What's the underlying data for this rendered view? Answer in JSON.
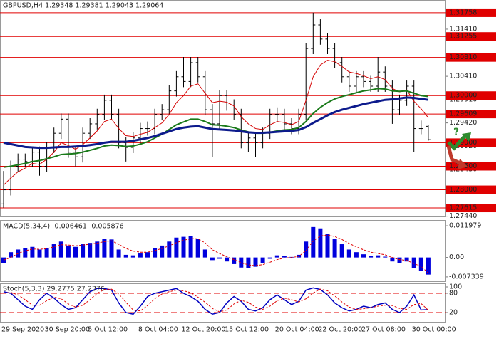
{
  "chart_data": [
    {
      "type": "ohlc",
      "title": "GBPUSD,H4  1.29348 1.29381 1.29043 1.29064",
      "annotation": "?",
      "categories": [
        "29 Sep 2020",
        null,
        null,
        null,
        null,
        null,
        "30 Sep 20:00",
        null,
        null,
        null,
        null,
        null,
        "5 Oct 12:00",
        null,
        null,
        null,
        null,
        null,
        null,
        "8 Oct 04:00",
        null,
        null,
        null,
        null,
        null,
        "12 Oct 20:00",
        null,
        null,
        null,
        null,
        null,
        "15 Oct 12:00",
        null,
        null,
        null,
        null,
        null,
        null,
        "20 Oct 04:00",
        null,
        null,
        null,
        null,
        null,
        "22 Oct 20:00",
        null,
        null,
        null,
        null,
        null,
        "27 Oct 08:00",
        null,
        null,
        null,
        null,
        null,
        null,
        "30 Oct 00:00",
        null,
        null
      ],
      "open": [
        1.277,
        1.28,
        1.285,
        1.2865,
        1.286,
        1.288,
        1.285,
        1.289,
        1.292,
        1.295,
        1.288,
        1.287,
        1.292,
        1.294,
        1.296,
        1.299,
        1.296,
        1.29,
        1.289,
        1.291,
        1.293,
        1.293,
        1.296,
        1.297,
        1.301,
        1.304,
        1.303,
        1.307,
        1.304,
        1.297,
        1.294,
        1.3,
        1.298,
        1.296,
        1.29,
        1.291,
        1.29,
        1.292,
        1.296,
        1.296,
        1.294,
        1.293,
        1.296,
        1.31,
        1.315,
        1.312,
        1.31,
        1.307,
        1.304,
        1.302,
        1.304,
        1.303,
        1.302,
        1.305,
        1.302,
        1.297,
        1.299,
        1.302,
        1.293,
        1.29348
      ],
      "high": [
        1.284,
        1.2862,
        1.2877,
        1.2877,
        1.2892,
        1.2892,
        1.2902,
        1.2932,
        1.2962,
        1.2962,
        1.2892,
        1.2932,
        1.2952,
        1.2972,
        1.3002,
        1.3002,
        1.2972,
        1.2912,
        1.2922,
        1.2942,
        1.2945,
        1.2972,
        1.2982,
        1.3022,
        1.3052,
        1.3082,
        1.3082,
        1.3082,
        1.3052,
        1.2982,
        1.3012,
        1.3012,
        1.2992,
        1.2972,
        1.2922,
        1.2922,
        1.2932,
        1.2972,
        1.2975,
        1.2972,
        1.2952,
        1.2972,
        1.3112,
        1.3176,
        1.3162,
        1.3132,
        1.3112,
        1.3082,
        1.3052,
        1.3052,
        1.3052,
        1.3042,
        1.3082,
        1.3062,
        1.3032,
        1.3002,
        1.3032,
        1.3032,
        1.2947,
        1.29381
      ],
      "low": [
        1.2762,
        1.2788,
        1.2838,
        1.2848,
        1.2848,
        1.283,
        1.2838,
        1.2878,
        1.2908,
        1.2868,
        1.285,
        1.2858,
        1.2908,
        1.2928,
        1.2948,
        1.2948,
        1.2888,
        1.286,
        1.2878,
        1.2898,
        1.2915,
        1.2918,
        1.2948,
        1.2958,
        1.2998,
        1.3018,
        1.3018,
        1.3028,
        1.2958,
        1.287,
        1.2928,
        1.2968,
        1.2948,
        1.2888,
        1.288,
        1.287,
        1.2888,
        1.2908,
        1.2945,
        1.2928,
        1.2918,
        1.2918,
        1.2948,
        1.3088,
        1.3108,
        1.3088,
        1.3058,
        1.3028,
        1.3008,
        1.3008,
        1.3018,
        1.3008,
        1.3008,
        1.3008,
        1.294,
        1.2958,
        1.2978,
        1.288,
        1.2918,
        1.29043
      ],
      "close": [
        1.28,
        1.285,
        1.2865,
        1.286,
        1.288,
        1.285,
        1.289,
        1.292,
        1.295,
        1.288,
        1.287,
        1.292,
        1.294,
        1.296,
        1.299,
        1.296,
        1.29,
        1.289,
        1.291,
        1.293,
        1.293,
        1.296,
        1.297,
        1.301,
        1.304,
        1.303,
        1.307,
        1.304,
        1.297,
        1.294,
        1.3,
        1.298,
        1.296,
        1.29,
        1.291,
        1.29,
        1.292,
        1.296,
        1.296,
        1.294,
        1.293,
        1.296,
        1.31,
        1.315,
        1.312,
        1.31,
        1.307,
        1.304,
        1.302,
        1.304,
        1.303,
        1.302,
        1.305,
        1.302,
        1.297,
        1.299,
        1.302,
        1.293,
        1.293,
        1.29064
      ],
      "color": "#000000",
      "series": [
        {
          "color": "#d40000",
          "values": [
            1.281,
            1.2825,
            1.2838,
            1.2846,
            1.2856,
            1.2854,
            1.2865,
            1.288,
            1.29,
            1.2894,
            1.2886,
            1.2896,
            1.291,
            1.2925,
            1.2945,
            1.295,
            1.293,
            1.2915,
            1.2913,
            1.2918,
            1.2922,
            1.2932,
            1.2942,
            1.296,
            1.2985,
            1.3,
            1.302,
            1.3025,
            1.3005,
            1.2985,
            1.2988,
            1.2986,
            1.2978,
            1.2955,
            1.294,
            1.293,
            1.2928,
            1.2938,
            1.2945,
            1.2943,
            1.2938,
            1.2945,
            1.299,
            1.304,
            1.3065,
            1.3075,
            1.3072,
            1.3062,
            1.305,
            1.3047,
            1.3042,
            1.3036,
            1.304,
            1.3034,
            1.3015,
            1.3008,
            1.3012,
            1.2988,
            1.2972,
            1.2953
          ]
        },
        {
          "color": "#1a7a1a",
          "values": [
            1.2848,
            1.285,
            1.2853,
            1.2856,
            1.286,
            1.2862,
            1.2866,
            1.287,
            1.2875,
            1.2876,
            1.2877,
            1.288,
            1.2884,
            1.2888,
            1.2893,
            1.2895,
            1.2894,
            1.2892,
            1.2893,
            1.2897,
            1.2902,
            1.291,
            1.2918,
            1.2928,
            1.2938,
            1.2944,
            1.295,
            1.295,
            1.2945,
            1.2938,
            1.2937,
            1.2935,
            1.2932,
            1.2927,
            1.2923,
            1.292,
            1.292,
            1.2922,
            1.2925,
            1.2927,
            1.2928,
            1.2932,
            1.2945,
            1.2962,
            1.2975,
            1.2985,
            1.2993,
            1.2998,
            1.3002,
            1.3006,
            1.301,
            1.3012,
            1.3015,
            1.3014,
            1.301,
            1.3009,
            1.301,
            1.3005,
            1.3,
            1.2998
          ]
        },
        {
          "color": "#0c1a8c",
          "values": [
            1.29,
            1.2897,
            1.2894,
            1.2891,
            1.289,
            1.2889,
            1.2889,
            1.289,
            1.2891,
            1.2891,
            1.2892,
            1.2893,
            1.2895,
            1.2897,
            1.29,
            1.2902,
            1.2902,
            1.2902,
            1.2904,
            1.2907,
            1.291,
            1.2914,
            1.2919,
            1.2924,
            1.2929,
            1.2932,
            1.2934,
            1.2935,
            1.2932,
            1.2929,
            1.2928,
            1.2927,
            1.2926,
            1.2924,
            1.2922,
            1.2921,
            1.2921,
            1.2922,
            1.2923,
            1.2924,
            1.2925,
            1.2927,
            1.2933,
            1.2942,
            1.295,
            1.2958,
            1.2965,
            1.297,
            1.2974,
            1.2978,
            1.2982,
            1.2985,
            1.2988,
            1.2991,
            1.2992,
            1.2994,
            1.2996,
            1.2995,
            1.2993,
            1.2991
          ]
        }
      ],
      "ylim": [
        1.27419,
        1.32014
      ],
      "yticks": [
        {
          "value": 1.3141,
          "label": "1.31410"
        },
        {
          "value": 1.3041,
          "label": "1.30410"
        },
        {
          "value": 1.2991,
          "label": "1.29910"
        },
        {
          "value": 1.2942,
          "label": "1.29420"
        },
        {
          "value": 1.2892,
          "label": "1.28920"
        },
        {
          "value": 1.2843,
          "label": "1.28430"
        },
        {
          "value": 1.2744,
          "label": "1.27440"
        }
      ],
      "levels": [
        {
          "value": 1.31758,
          "label": "1.31758"
        },
        {
          "value": 1.31255,
          "label": "1.31255"
        },
        {
          "value": 1.3081,
          "label": "1.30810"
        },
        {
          "value": 1.3,
          "label": "1.30000"
        },
        {
          "value": 1.29609,
          "label": "1.29609"
        },
        {
          "value": 1.29,
          "label": "1.29000"
        },
        {
          "value": 1.285,
          "label": "1.28500"
        },
        {
          "value": 1.28,
          "label": "1.28000"
        },
        {
          "value": 1.27615,
          "label": "1.27615"
        }
      ],
      "level_color": "#e00000"
    },
    {
      "type": "macd",
      "title": "MACD(5,34,4) -0.006461 -0.005876",
      "values": [
        -0.002,
        0.002,
        0.003,
        0.0035,
        0.004,
        0.003,
        0.0035,
        0.005,
        0.006,
        0.0045,
        0.004,
        0.005,
        0.0055,
        0.006,
        0.007,
        0.0068,
        0.003,
        0.001,
        0.0008,
        0.0015,
        0.002,
        0.0035,
        0.0045,
        0.006,
        0.0075,
        0.0078,
        0.008,
        0.007,
        0.003,
        -0.001,
        -0.0005,
        -0.0015,
        -0.0025,
        -0.0038,
        -0.004,
        -0.0035,
        -0.002,
        -0.0005,
        0.0008,
        0.0005,
        0.0002,
        0.001,
        0.006,
        0.0115,
        0.011,
        0.009,
        0.007,
        0.005,
        0.003,
        0.002,
        0.0012,
        0.0005,
        0.0008,
        0.0003,
        -0.0015,
        -0.002,
        -0.0015,
        -0.004,
        -0.005,
        -0.006461
      ],
      "color": "#0000dd",
      "series": [
        {
          "color": "#e00000",
          "values": [
            -0.001,
            0.0,
            0.0015,
            0.0025,
            0.0032,
            0.0031,
            0.0033,
            0.004,
            0.0048,
            0.0047,
            0.0044,
            0.0047,
            0.005,
            0.0054,
            0.006,
            0.0063,
            0.005,
            0.0034,
            0.0024,
            0.002,
            0.002,
            0.0026,
            0.0034,
            0.0044,
            0.0056,
            0.0065,
            0.0071,
            0.0071,
            0.0055,
            0.0029,
            0.0015,
            0.0003,
            -0.0008,
            -0.002,
            -0.0028,
            -0.0031,
            -0.0027,
            -0.0018,
            -0.0008,
            -0.0002,
            0.0,
            0.0004,
            0.0026,
            0.0062,
            0.0081,
            0.0085,
            0.0079,
            0.0068,
            0.0053,
            0.004,
            0.0029,
            0.002,
            0.0015,
            0.001,
            0.0,
            -0.0008,
            -0.0011,
            -0.0023,
            -0.0034,
            -0.005876
          ]
        }
      ],
      "ylim": [
        -0.009244,
        0.013884
      ],
      "yticks": [
        0.011979,
        {
          "value": 0,
          "label": "0.00"
        },
        -0.007339
      ]
    },
    {
      "type": "stoch",
      "title": "Stoch(5,3,3) 29.2775 27.2376",
      "series": [
        {
          "color": "#0000c0",
          "values": [
            85,
            80,
            60,
            40,
            30,
            60,
            80,
            65,
            45,
            30,
            35,
            60,
            85,
            95,
            95,
            90,
            50,
            20,
            15,
            40,
            70,
            80,
            85,
            90,
            95,
            80,
            70,
            55,
            30,
            15,
            20,
            50,
            70,
            55,
            30,
            25,
            35,
            60,
            75,
            60,
            45,
            55,
            90,
            97,
            92,
            75,
            50,
            35,
            25,
            30,
            40,
            35,
            45,
            50,
            30,
            20,
            40,
            75,
            28,
            29.2775
          ]
        },
        {
          "color": "#e00000",
          "values": [
            80,
            83,
            75,
            60,
            43,
            43,
            57,
            68,
            63,
            47,
            37,
            43,
            60,
            80,
            92,
            93,
            78,
            52,
            28,
            25,
            42,
            63,
            78,
            85,
            90,
            88,
            82,
            68,
            52,
            33,
            22,
            28,
            47,
            58,
            52,
            37,
            30,
            40,
            57,
            65,
            60,
            53,
            63,
            81,
            93,
            88,
            72,
            53,
            37,
            30,
            32,
            35,
            40,
            43,
            42,
            33,
            30,
            45,
            48,
            27.2376
          ]
        }
      ],
      "ylim": [
        -11.1,
        108.9
      ],
      "yticks": [
        100,
        80,
        20
      ],
      "levels": [
        80,
        20
      ],
      "level_color": "#e00000"
    }
  ]
}
